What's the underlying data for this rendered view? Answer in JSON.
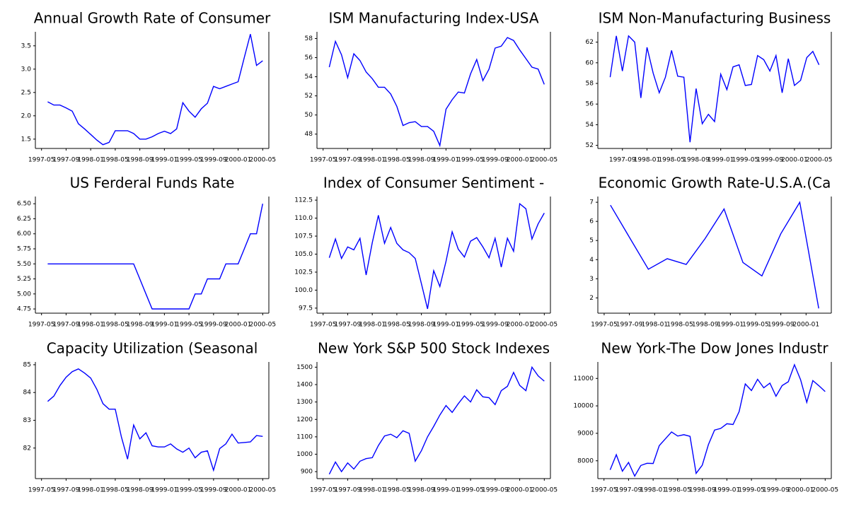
{
  "chart_data": [
    {
      "type": "line",
      "title": "Annual Growth Rate of Consumer",
      "color": "#0000ff",
      "x": [
        "1997-06",
        "1997-07",
        "1997-08",
        "1997-09",
        "1997-10",
        "1997-11",
        "1997-12",
        "1998-01",
        "1998-02",
        "1998-03",
        "1998-04",
        "1998-05",
        "1998-06",
        "1998-07",
        "1998-08",
        "1998-09",
        "1998-10",
        "1998-11",
        "1998-12",
        "1999-01",
        "1999-02",
        "1999-03",
        "1999-04",
        "1999-05",
        "1999-06",
        "1999-07",
        "1999-08",
        "1999-09",
        "1999-10",
        "1999-11",
        "1999-12",
        "2000-01",
        "2000-02",
        "2000-03",
        "2000-04",
        "2000-05"
      ],
      "values": [
        2.3,
        2.23,
        2.23,
        2.17,
        2.1,
        1.83,
        1.72,
        1.6,
        1.48,
        1.38,
        1.43,
        1.68,
        1.68,
        1.68,
        1.62,
        1.5,
        1.5,
        1.55,
        1.62,
        1.67,
        1.62,
        1.72,
        2.28,
        2.1,
        1.97,
        2.15,
        2.27,
        2.63,
        2.58,
        2.63,
        2.68,
        2.73,
        3.25,
        3.75,
        3.08,
        3.18
      ],
      "xlim": [
        "1997-04",
        "2000-06"
      ],
      "xticks": [
        "1997-05",
        "1997-09",
        "1998-01",
        "1998-05",
        "1998-09",
        "1999-01",
        "1999-05",
        "1999-09",
        "2000-01",
        "2000-05"
      ],
      "ylim": [
        1.3,
        3.8
      ],
      "yticks": [
        1.5,
        {
          "value": 2,
          "label": "2.0"
        },
        2.5,
        {
          "value": 3,
          "label": "3.0"
        },
        3.5
      ]
    },
    {
      "type": "line",
      "title": "ISM Manufacturing Index-USA",
      "color": "#0000ff",
      "x": [
        "1997-06",
        "1997-07",
        "1997-08",
        "1997-09",
        "1997-10",
        "1997-11",
        "1997-12",
        "1998-01",
        "1998-02",
        "1998-03",
        "1998-04",
        "1998-05",
        "1998-06",
        "1998-07",
        "1998-08",
        "1998-09",
        "1998-10",
        "1998-11",
        "1998-12",
        "1999-01",
        "1999-02",
        "1999-03",
        "1999-04",
        "1999-05",
        "1999-06",
        "1999-07",
        "1999-08",
        "1999-09",
        "1999-10",
        "1999-11",
        "1999-12",
        "2000-01",
        "2000-02",
        "2000-03",
        "2000-04",
        "2000-05"
      ],
      "values": [
        55.0,
        57.7,
        56.3,
        53.9,
        56.4,
        55.7,
        54.5,
        53.8,
        52.9,
        52.9,
        52.2,
        50.9,
        48.9,
        49.2,
        49.3,
        48.8,
        48.8,
        48.3,
        46.8,
        50.6,
        51.6,
        52.4,
        52.3,
        54.3,
        55.8,
        53.6,
        54.8,
        57.0,
        57.2,
        58.1,
        57.8,
        56.8,
        55.9,
        55.0,
        54.8,
        53.2
      ],
      "xlim": [
        "1997-04",
        "2000-06"
      ],
      "xticks": [
        "1997-05",
        "1997-09",
        "1998-01",
        "1998-05",
        "1998-09",
        "1999-01",
        "1999-05",
        "1999-09",
        "2000-01",
        "2000-05"
      ],
      "ylim": [
        46.5,
        58.7
      ],
      "yticks": [
        48,
        50,
        52,
        54,
        56,
        58
      ]
    },
    {
      "type": "line",
      "title": "ISM Non-Manufacturing Business",
      "color": "#0000ff",
      "x": [
        "1997-07",
        "1997-08",
        "1997-09",
        "1997-10",
        "1997-11",
        "1997-12",
        "1998-01",
        "1998-02",
        "1998-03",
        "1998-04",
        "1998-05",
        "1998-06",
        "1998-07",
        "1998-08",
        "1998-09",
        "1998-10",
        "1998-11",
        "1998-12",
        "1999-01",
        "1999-02",
        "1999-03",
        "1999-04",
        "1999-05",
        "1999-06",
        "1999-07",
        "1999-08",
        "1999-09",
        "1999-10",
        "1999-11",
        "1999-12",
        "2000-01",
        "2000-02",
        "2000-03",
        "2000-04",
        "2000-05"
      ],
      "values": [
        58.6,
        62.6,
        59.2,
        62.6,
        62.0,
        56.6,
        61.5,
        59.0,
        57.1,
        58.6,
        61.2,
        58.7,
        58.6,
        52.3,
        57.5,
        54.1,
        55.0,
        54.3,
        58.9,
        57.4,
        59.6,
        59.8,
        57.8,
        57.9,
        60.7,
        60.3,
        59.2,
        60.7,
        57.1,
        60.4,
        57.8,
        58.3,
        60.5,
        61.1,
        59.8
      ],
      "xlim": [
        "1997-05",
        "2000-07"
      ],
      "xticks": [
        "1997-09",
        "1998-01",
        "1998-05",
        "1998-09",
        "1999-01",
        "1999-05",
        "1999-09",
        "2000-01",
        "2000-05"
      ],
      "ylim": [
        51.7,
        63
      ],
      "yticks": [
        52,
        54,
        56,
        58,
        60,
        62
      ]
    },
    {
      "type": "line",
      "title": "US Ferderal Funds Rate",
      "color": "#0000ff",
      "x": [
        "1997-06",
        "1997-07",
        "1997-08",
        "1997-09",
        "1997-10",
        "1997-11",
        "1997-12",
        "1998-01",
        "1998-02",
        "1998-03",
        "1998-04",
        "1998-05",
        "1998-06",
        "1998-07",
        "1998-08",
        "1998-09",
        "1998-10",
        "1998-11",
        "1998-12",
        "1999-01",
        "1999-02",
        "1999-03",
        "1999-04",
        "1999-05",
        "1999-06",
        "1999-07",
        "1999-08",
        "1999-09",
        "1999-10",
        "1999-11",
        "1999-12",
        "2000-01",
        "2000-02",
        "2000-03",
        "2000-04",
        "2000-05"
      ],
      "values": [
        5.5,
        5.5,
        5.5,
        5.5,
        5.5,
        5.5,
        5.5,
        5.5,
        5.5,
        5.5,
        5.5,
        5.5,
        5.5,
        5.5,
        5.5,
        5.25,
        5.0,
        4.75,
        4.75,
        4.75,
        4.75,
        4.75,
        4.75,
        4.75,
        5.0,
        5.0,
        5.25,
        5.25,
        5.25,
        5.5,
        5.5,
        5.5,
        5.75,
        6.0,
        6.0,
        6.5
      ],
      "xlim": [
        "1997-04",
        "2000-06"
      ],
      "xticks": [
        "1997-05",
        "1997-09",
        "1998-01",
        "1998-05",
        "1998-09",
        "1999-01",
        "1999-05",
        "1999-09",
        "2000-01",
        "2000-05"
      ],
      "ylim": [
        4.68,
        6.62
      ],
      "yticks": [
        4.75,
        {
          "value": 5,
          "label": "5.00"
        },
        5.25,
        {
          "value": 5.5,
          "label": "5.50"
        },
        5.75,
        {
          "value": 6,
          "label": "6.00"
        },
        6.25,
        {
          "value": 6.5,
          "label": "6.50"
        }
      ]
    },
    {
      "type": "line",
      "title": "Index of Consumer Sentiment -",
      "color": "#0000ff",
      "x": [
        "1997-06",
        "1997-07",
        "1997-08",
        "1997-09",
        "1997-10",
        "1997-11",
        "1997-12",
        "1998-01",
        "1998-02",
        "1998-03",
        "1998-04",
        "1998-05",
        "1998-06",
        "1998-07",
        "1998-08",
        "1998-09",
        "1998-10",
        "1998-11",
        "1998-12",
        "1999-01",
        "1999-02",
        "1999-03",
        "1999-04",
        "1999-05",
        "1999-06",
        "1999-07",
        "1999-08",
        "1999-09",
        "1999-10",
        "1999-11",
        "1999-12",
        "2000-01",
        "2000-02",
        "2000-03",
        "2000-04",
        "2000-05"
      ],
      "values": [
        104.5,
        107.1,
        104.4,
        106.0,
        105.6,
        107.2,
        102.1,
        106.6,
        110.4,
        106.5,
        108.7,
        106.5,
        105.6,
        105.2,
        104.4,
        100.9,
        97.4,
        102.7,
        100.5,
        104.0,
        108.1,
        105.7,
        104.6,
        106.8,
        107.3,
        106.0,
        104.5,
        107.2,
        103.2,
        107.2,
        105.4,
        112.0,
        111.3,
        107.1,
        109.2,
        110.7
      ],
      "xlim": [
        "1997-04",
        "2000-06"
      ],
      "xticks": [
        "1997-05",
        "1997-09",
        "1998-01",
        "1998-05",
        "1998-09",
        "1999-01",
        "1999-05",
        "1999-09",
        "2000-01",
        "2000-05"
      ],
      "ylim": [
        96.8,
        113
      ],
      "yticks": [
        97.5,
        {
          "value": 100,
          "label": "100.0"
        },
        102.5,
        {
          "value": 105,
          "label": "105.0"
        },
        107.5,
        {
          "value": 110,
          "label": "110.0"
        },
        112.5
      ]
    },
    {
      "type": "line",
      "title": "Economic Growth Rate-U.S.A.(Ca",
      "color": "#0000ff",
      "x": [
        "1997-06",
        "1997-09",
        "1997-12",
        "1998-03",
        "1998-06",
        "1998-09",
        "1998-12",
        "1999-03",
        "1999-06",
        "1999-09",
        "1999-12",
        "2000-03"
      ],
      "values": [
        6.85,
        5.17,
        3.5,
        4.05,
        3.75,
        5.1,
        6.65,
        3.85,
        3.15,
        5.35,
        7.0,
        1.45
      ],
      "xlim": [
        "1997-04",
        "2000-05"
      ],
      "xticks": [
        "1997-05",
        "1997-09",
        "1998-01",
        "1998-05",
        "1998-09",
        "1999-01",
        "1999-05",
        "1999-09",
        "2000-01"
      ],
      "ylim": [
        1.2,
        7.3
      ],
      "yticks": [
        2,
        3,
        4,
        5,
        6,
        7
      ]
    },
    {
      "type": "line",
      "title": "Capacity Utilization (Seasonal",
      "color": "#0000ff",
      "x": [
        "1997-06",
        "1997-07",
        "1997-08",
        "1997-09",
        "1997-10",
        "1997-11",
        "1997-12",
        "1998-01",
        "1998-02",
        "1998-03",
        "1998-04",
        "1998-05",
        "1998-06",
        "1998-07",
        "1998-08",
        "1998-09",
        "1998-10",
        "1998-11",
        "1998-12",
        "1999-01",
        "1999-02",
        "1999-03",
        "1999-04",
        "1999-05",
        "1999-06",
        "1999-07",
        "1999-08",
        "1999-09",
        "1999-10",
        "1999-11",
        "1999-12",
        "2000-01",
        "2000-02",
        "2000-03",
        "2000-04",
        "2000-05"
      ],
      "values": [
        83.68,
        83.87,
        84.25,
        84.55,
        84.75,
        84.85,
        84.7,
        84.52,
        84.12,
        83.6,
        83.4,
        83.4,
        82.4,
        81.6,
        82.83,
        82.33,
        82.55,
        82.08,
        82.04,
        82.04,
        82.15,
        81.97,
        81.85,
        82.0,
        81.65,
        81.85,
        81.9,
        81.2,
        81.98,
        82.15,
        82.5,
        82.18,
        82.2,
        82.22,
        82.45,
        82.42
      ],
      "xlim": [
        "1997-04",
        "2000-06"
      ],
      "xticks": [
        "1997-05",
        "1997-09",
        "1998-01",
        "1998-05",
        "1998-09",
        "1999-01",
        "1999-05",
        "1999-09",
        "2000-01",
        "2000-05"
      ],
      "ylim": [
        80.9,
        85.1
      ],
      "yticks": [
        82,
        83,
        84,
        85
      ]
    },
    {
      "type": "line",
      "title": "New York S&P 500 Stock Indexes",
      "color": "#0000ff",
      "x": [
        "1997-06",
        "1997-07",
        "1997-08",
        "1997-09",
        "1997-10",
        "1997-11",
        "1997-12",
        "1998-01",
        "1998-02",
        "1998-03",
        "1998-04",
        "1998-05",
        "1998-06",
        "1998-07",
        "1998-08",
        "1998-09",
        "1998-10",
        "1998-11",
        "1998-12",
        "1999-01",
        "1999-02",
        "1999-03",
        "1999-04",
        "1999-05",
        "1999-06",
        "1999-07",
        "1999-08",
        "1999-09",
        "1999-10",
        "1999-11",
        "1999-12",
        "2000-01",
        "2000-02",
        "2000-03",
        "2000-04",
        "2000-05"
      ],
      "values": [
        885,
        955,
        900,
        950,
        915,
        960,
        975,
        980,
        1050,
        1105,
        1115,
        1095,
        1135,
        1120,
        960,
        1020,
        1100,
        1160,
        1225,
        1280,
        1240,
        1290,
        1335,
        1300,
        1370,
        1330,
        1325,
        1285,
        1365,
        1390,
        1470,
        1395,
        1365,
        1500,
        1450,
        1420
      ],
      "xlim": [
        "1997-04",
        "2000-06"
      ],
      "xticks": [
        "1997-05",
        "1997-09",
        "1998-01",
        "1998-05",
        "1998-09",
        "1999-01",
        "1999-05",
        "1999-09",
        "2000-01",
        "2000-05"
      ],
      "ylim": [
        860,
        1530
      ],
      "yticks": [
        900,
        1000,
        1100,
        1200,
        1300,
        1400,
        1500
      ]
    },
    {
      "type": "line",
      "title": "New York-The Dow Jones Industr",
      "color": "#0000ff",
      "x": [
        "1997-06",
        "1997-07",
        "1997-08",
        "1997-09",
        "1997-10",
        "1997-11",
        "1997-12",
        "1998-01",
        "1998-02",
        "1998-03",
        "1998-04",
        "1998-05",
        "1998-06",
        "1998-07",
        "1998-08",
        "1998-09",
        "1998-10",
        "1998-11",
        "1998-12",
        "1999-01",
        "1999-02",
        "1999-03",
        "1999-04",
        "1999-05",
        "1999-06",
        "1999-07",
        "1999-08",
        "1999-09",
        "1999-10",
        "1999-11",
        "1999-12",
        "2000-01",
        "2000-02",
        "2000-03",
        "2000-04",
        "2000-05"
      ],
      "values": [
        7670,
        8220,
        7620,
        7940,
        7440,
        7830,
        7910,
        7900,
        8550,
        8800,
        9050,
        8900,
        8950,
        8890,
        7540,
        7840,
        8590,
        9120,
        9180,
        9350,
        9320,
        9790,
        10800,
        10560,
        10970,
        10660,
        10830,
        10350,
        10740,
        10880,
        11500,
        10950,
        10130,
        10920,
        10730,
        10520
      ],
      "xlim": [
        "1997-04",
        "2000-06"
      ],
      "xticks": [
        "1997-05",
        "1997-09",
        "1998-01",
        "1998-05",
        "1998-09",
        "1999-01",
        "1999-05",
        "1999-09",
        "2000-01",
        "2000-05"
      ],
      "ylim": [
        7350,
        11600
      ],
      "yticks": [
        8000,
        9000,
        10000,
        11000
      ]
    }
  ]
}
